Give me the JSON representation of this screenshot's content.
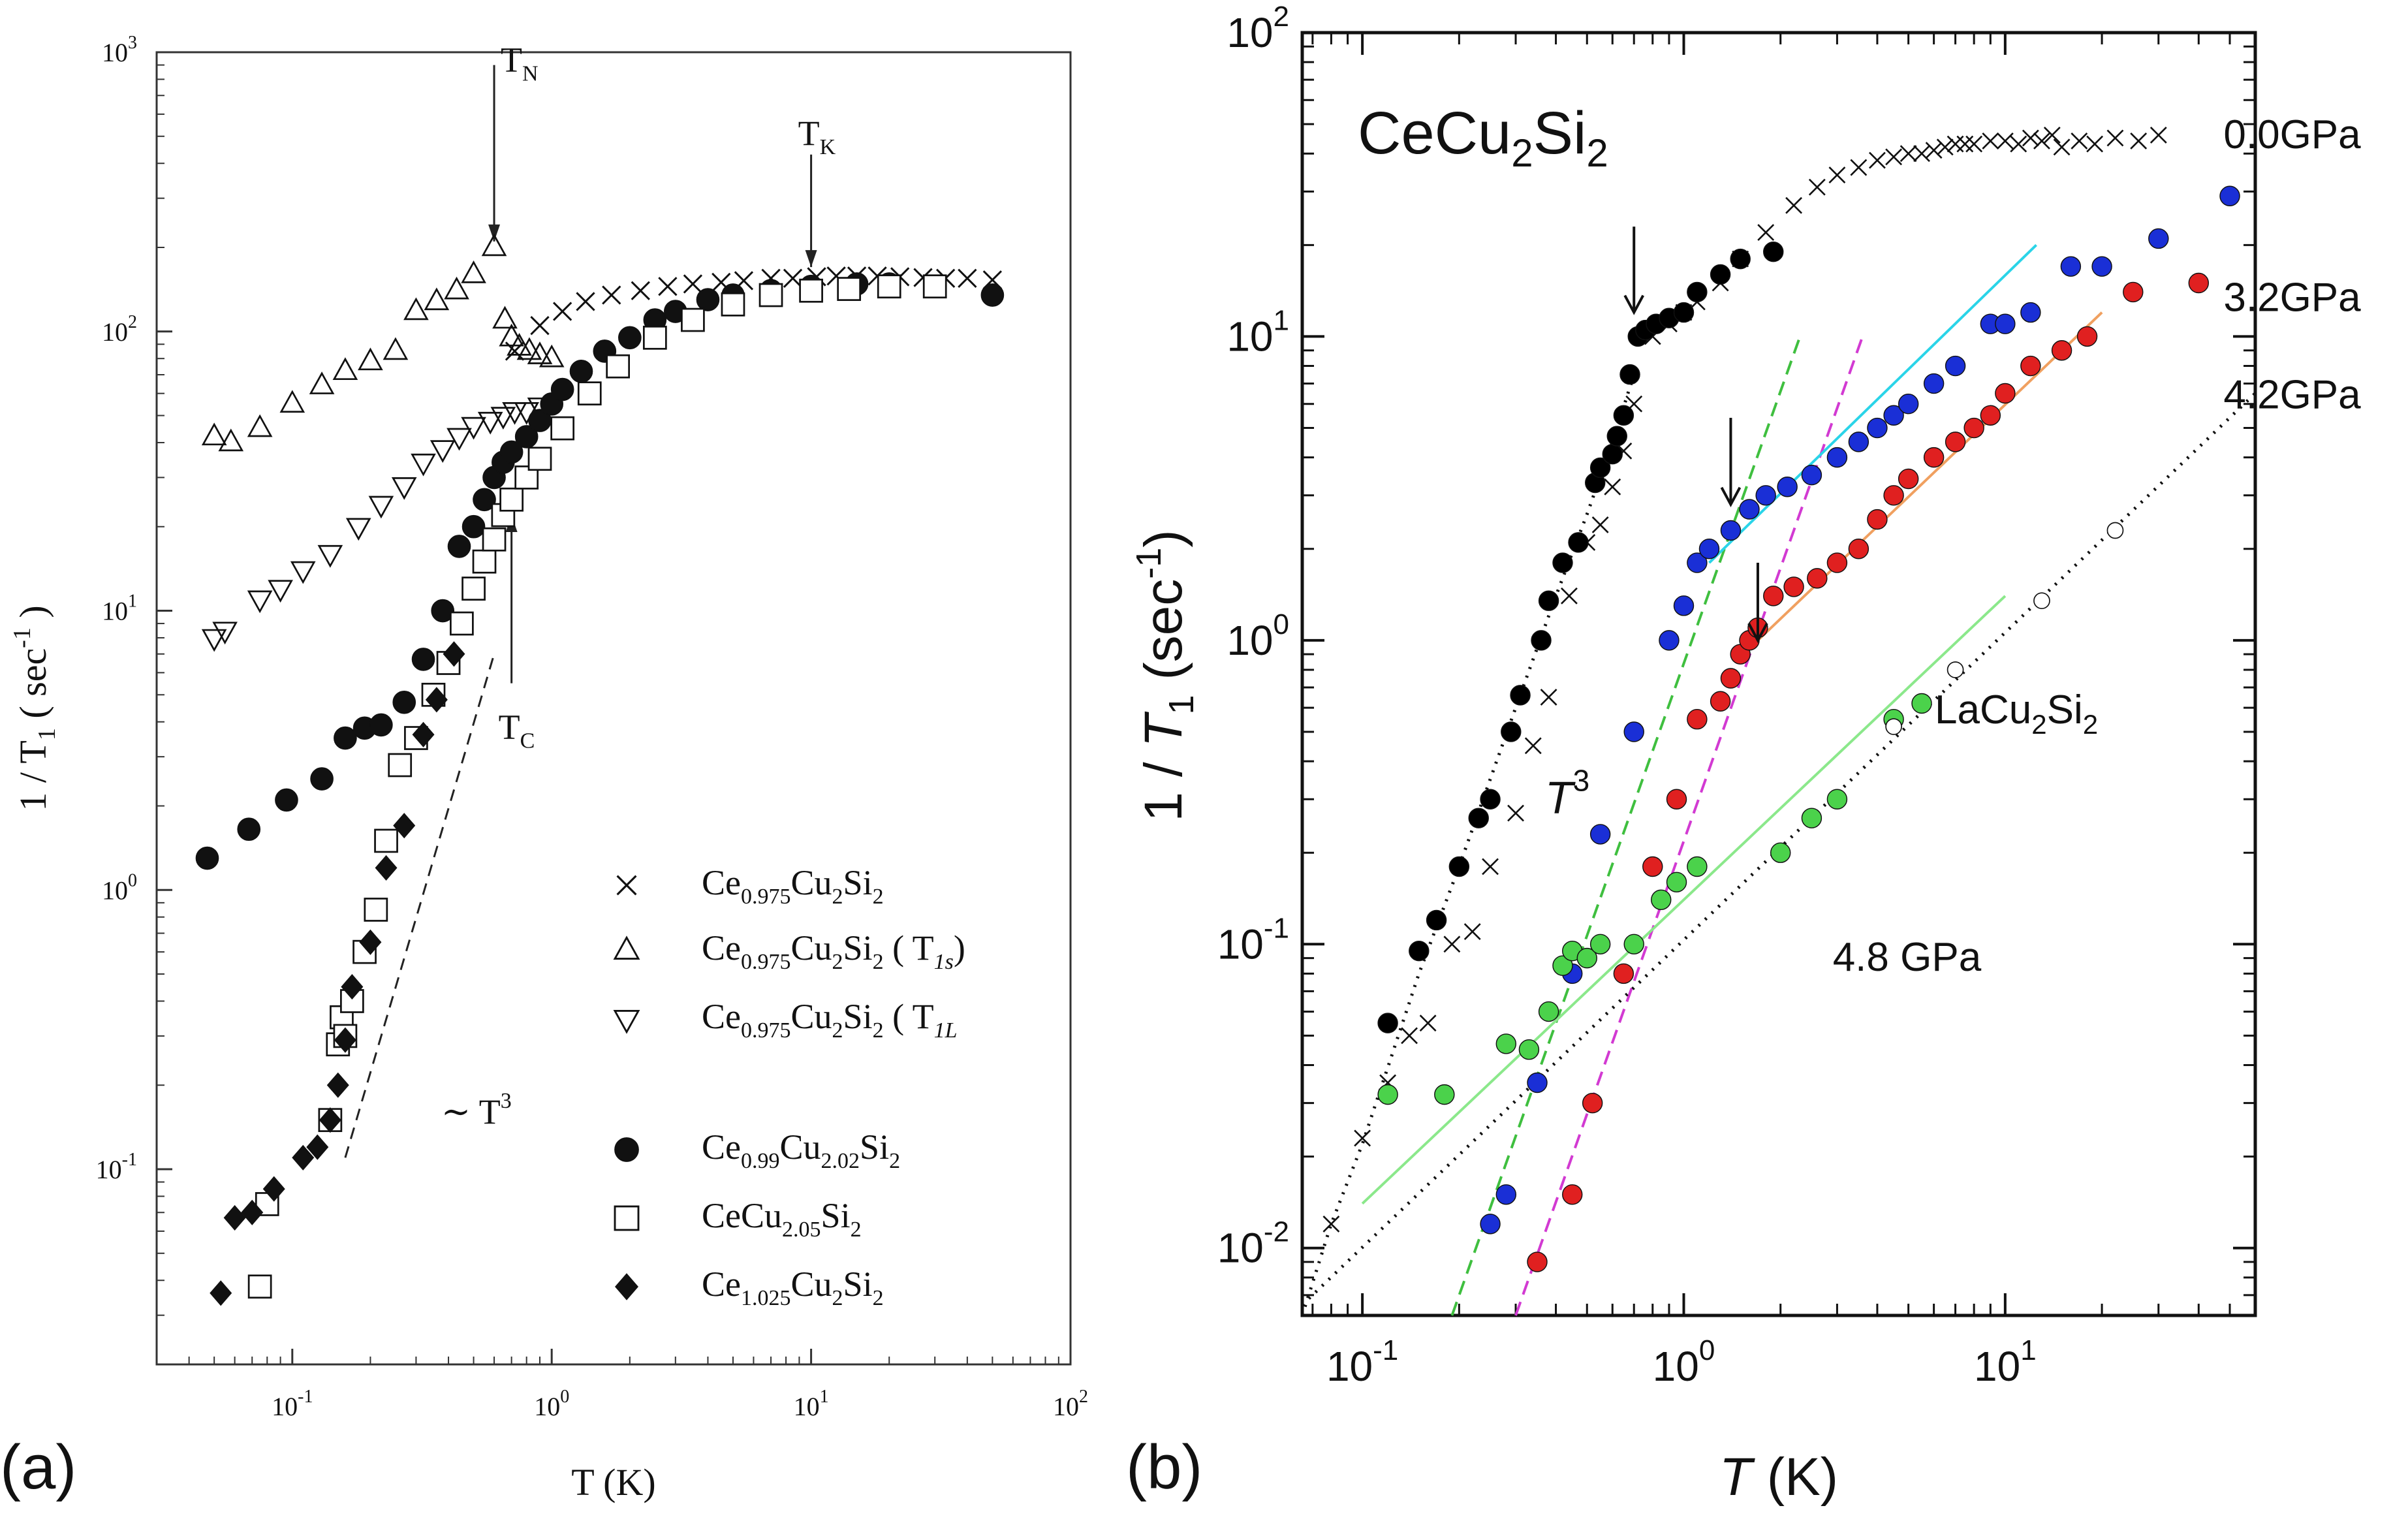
{
  "panel_labels": {
    "a": "(a)",
    "b": "(b)"
  },
  "chart_data": [
    {
      "type": "scatter",
      "id": "panel-a",
      "xscale": "log",
      "yscale": "log",
      "xlim": [
        0.03,
        100
      ],
      "ylim": [
        0.02,
        1000
      ],
      "xlabel": "T (K)",
      "ylabel": "1 / T",
      "ylabel_sub": "1",
      "ylabel_unit": " ( sec",
      "ylabel_unit_sup": "-1",
      "ylabel_close": " )",
      "xticks": [
        {
          "v": 0.1,
          "m": "10",
          "e": "-1"
        },
        {
          "v": 1,
          "m": "10",
          "e": "0"
        },
        {
          "v": 10,
          "m": "10",
          "e": "1"
        },
        {
          "v": 100,
          "m": "10",
          "e": "2"
        }
      ],
      "yticks": [
        {
          "v": 0.1,
          "m": "10",
          "e": "-1"
        },
        {
          "v": 1,
          "m": "10",
          "e": "0"
        },
        {
          "v": 10,
          "m": "10",
          "e": "1"
        },
        {
          "v": 100,
          "m": "10",
          "e": "2"
        },
        {
          "v": 1000,
          "m": "10",
          "e": "3"
        }
      ],
      "series": [
        {
          "name": "Ce0.975Cu2Si2",
          "marker": "cross",
          "x": [
            0.72,
            0.9,
            1.1,
            1.35,
            1.7,
            2.2,
            2.8,
            3.5,
            4.5,
            5.5,
            7,
            8.5,
            10.5,
            12.5,
            15,
            18,
            22,
            27,
            33,
            40,
            50
          ],
          "y": [
            85,
            105,
            118,
            128,
            135,
            140,
            145,
            148,
            150,
            152,
            155,
            155,
            157,
            158,
            158,
            158,
            157,
            156,
            155,
            155,
            153
          ]
        },
        {
          "name": "Ce0.975Cu2Si2 (T1s)",
          "marker": "tri-up",
          "x": [
            0.05,
            0.058,
            0.075,
            0.1,
            0.13,
            0.16,
            0.2,
            0.25,
            0.3,
            0.36,
            0.43,
            0.5,
            0.6,
            0.66,
            0.7,
            0.75,
            0.82,
            0.9,
            1.0
          ],
          "y": [
            42,
            40,
            45,
            55,
            64,
            72,
            78,
            85,
            118,
            128,
            140,
            160,
            200,
            110,
            95,
            88,
            85,
            82,
            80
          ]
        },
        {
          "name": "Ce0.975Cu2Si2 (T1L)",
          "marker": "tri-down",
          "x": [
            0.05,
            0.055,
            0.075,
            0.09,
            0.11,
            0.14,
            0.18,
            0.22,
            0.27,
            0.32,
            0.38,
            0.44,
            0.5,
            0.58,
            0.65,
            0.72,
            0.8,
            0.9
          ],
          "y": [
            8,
            8.5,
            11,
            12,
            14,
            16,
            20,
            24,
            28,
            34,
            38,
            42,
            46,
            48,
            50,
            52,
            52,
            54
          ]
        },
        {
          "name": "Ce0.99Cu2.02Si2",
          "marker": "circle",
          "x": [
            0.047,
            0.068,
            0.095,
            0.13,
            0.16,
            0.19,
            0.22,
            0.27,
            0.32,
            0.38,
            0.44,
            0.5,
            0.55,
            0.6,
            0.65,
            0.7,
            0.8,
            0.9,
            1.0,
            1.1,
            1.3,
            1.6,
            2.0,
            2.5,
            3.0,
            4,
            5,
            7,
            10,
            15,
            20,
            30,
            50
          ],
          "y": [
            1.3,
            1.65,
            2.1,
            2.5,
            3.5,
            3.8,
            3.9,
            4.7,
            6.7,
            10,
            17,
            20,
            25,
            30,
            34,
            37,
            42,
            48,
            55,
            62,
            72,
            85,
            95,
            110,
            118,
            130,
            135,
            140,
            145,
            148,
            148,
            145,
            135
          ]
        },
        {
          "name": "CeCu2.05Si2",
          "marker": "square",
          "x": [
            0.075,
            0.08,
            0.14,
            0.15,
            0.155,
            0.16,
            0.17,
            0.19,
            0.21,
            0.23,
            0.26,
            0.3,
            0.35,
            0.4,
            0.45,
            0.5,
            0.55,
            0.6,
            0.65,
            0.7,
            0.8,
            0.9,
            1.1,
            1.4,
            1.8,
            2.5,
            3.5,
            5,
            7,
            10,
            14,
            20,
            30
          ],
          "y": [
            0.038,
            0.075,
            0.15,
            0.28,
            0.35,
            0.3,
            0.4,
            0.6,
            0.85,
            1.5,
            2.8,
            3.5,
            5,
            6.5,
            9,
            12,
            15,
            18,
            22,
            25,
            30,
            35,
            45,
            60,
            75,
            95,
            110,
            125,
            135,
            140,
            142,
            145,
            145
          ]
        },
        {
          "name": "Ce1.025Cu2Si2",
          "marker": "diamond",
          "x": [
            0.053,
            0.06,
            0.07,
            0.085,
            0.11,
            0.125,
            0.14,
            0.15,
            0.16,
            0.17,
            0.2,
            0.23,
            0.27,
            0.32,
            0.36,
            0.42
          ],
          "y": [
            0.036,
            0.067,
            0.07,
            0.085,
            0.11,
            0.12,
            0.15,
            0.2,
            0.29,
            0.45,
            0.65,
            1.2,
            1.7,
            3.6,
            4.8,
            7
          ]
        }
      ],
      "legend": [
        {
          "main": "Ce",
          "s1": "0.975",
          "m2": "Cu",
          "s2": "2",
          "m3": "Si",
          "s3": "2",
          "extra": "",
          "marker": "cross"
        },
        {
          "main": "Ce",
          "s1": "0.975",
          "m2": "Cu",
          "s2": "2",
          "m3": "Si",
          "s3": "2",
          "extra": " ( T",
          "extra_sub": "1s",
          "extra_close": ")",
          "marker": "tri-up"
        },
        {
          "main": "Ce",
          "s1": "0.975",
          "m2": "Cu",
          "s2": "2",
          "m3": "Si",
          "s3": "2",
          "extra": " ( T",
          "extra_sub": "1L",
          "extra_close": "",
          "marker": "tri-down"
        },
        {
          "main": "Ce",
          "s1": "0.99",
          "m2": "Cu",
          "s2": "2.02",
          "m3": "Si",
          "s3": "2",
          "extra": "",
          "marker": "circle"
        },
        {
          "main": "Ce",
          "s1": "",
          "m2": "Cu",
          "s2": "2.05",
          "m3": "Si",
          "s3": "2",
          "extra": "",
          "marker": "square"
        },
        {
          "main": "Ce",
          "s1": "1.025",
          "m2": "Cu",
          "s2": "2",
          "m3": "Si",
          "s3": "2",
          "extra": "",
          "marker": "diamond"
        }
      ],
      "annotations": {
        "TN": {
          "base": "T",
          "sub": "N",
          "x": 0.6,
          "arrow_from": 900,
          "arrow_to": 210
        },
        "TK": {
          "base": "T",
          "sub": "K",
          "x": 10,
          "arrow_from": 430,
          "arrow_to": 170
        },
        "TC": {
          "base": "T",
          "sub": "C",
          "x": 0.7,
          "arrow_from": 5.5,
          "arrow_to": 22
        },
        "power": {
          "base": "T",
          "sup": "3",
          "prefix": "∼",
          "x": 0.25,
          "y": 0.1
        },
        "t3_dashed_line": {
          "x": [
            0.16,
            0.6
          ],
          "y": [
            0.11,
            7
          ]
        }
      }
    },
    {
      "type": "scatter",
      "id": "panel-b",
      "xscale": "log",
      "yscale": "log",
      "xlim": [
        0.065,
        60
      ],
      "ylim": [
        0.006,
        100
      ],
      "title_main": "CeCu",
      "title_s1": "2",
      "title_m2": "Si",
      "title_s2": "2",
      "xlabel_italic": "T",
      "xlabel_rest": " (K)",
      "ylabel_pre": "1 / ",
      "ylabel_italic": "T",
      "ylabel_sub": "1",
      "ylabel_unit": " (sec",
      "ylabel_sup": "-1",
      "ylabel_close": ")",
      "xticks": [
        {
          "v": 0.1,
          "m": "10",
          "e": "-1"
        },
        {
          "v": 1,
          "m": "10",
          "e": "0"
        },
        {
          "v": 10,
          "m": "10",
          "e": "1"
        }
      ],
      "yticks": [
        {
          "v": 0.01,
          "m": "10",
          "e": "-2"
        },
        {
          "v": 0.1,
          "m": "10",
          "e": "-1"
        },
        {
          "v": 1,
          "m": "10",
          "e": "0"
        },
        {
          "v": 10,
          "m": "10",
          "e": "1"
        },
        {
          "v": 100,
          "m": "10",
          "e": "2"
        }
      ],
      "series": [
        {
          "name": "0.0GPa",
          "label": "0.0GPa",
          "marker": "cross",
          "color": "#111111",
          "x": [
            0.08,
            0.1,
            0.12,
            0.14,
            0.16,
            0.19,
            0.22,
            0.25,
            0.3,
            0.34,
            0.38,
            0.44,
            0.5,
            0.55,
            0.6,
            0.65,
            0.7,
            0.8,
            0.9,
            1.0,
            1.1,
            1.3,
            1.5,
            1.8,
            2.2,
            2.6,
            3,
            3.5,
            4,
            4.5,
            5,
            5.5,
            6,
            6.5,
            7,
            7.5,
            8,
            9,
            10,
            11,
            12,
            13,
            14,
            15,
            17,
            19,
            22,
            26,
            30
          ],
          "y": [
            0.012,
            0.023,
            0.035,
            0.05,
            0.055,
            0.1,
            0.11,
            0.18,
            0.27,
            0.45,
            0.65,
            1.4,
            2.1,
            2.4,
            3.2,
            4.2,
            6,
            10,
            11,
            12,
            13,
            15,
            18,
            22,
            27,
            31,
            34,
            36,
            38,
            39,
            40,
            40,
            41,
            42,
            43,
            43,
            43,
            44,
            44,
            43,
            45,
            44,
            46,
            42,
            44,
            43,
            45,
            44,
            46
          ]
        },
        {
          "name": "0.0GPa circles",
          "marker": "circle",
          "color": "#000000",
          "x": [
            0.12,
            0.15,
            0.17,
            0.2,
            0.23,
            0.25,
            0.29,
            0.31,
            0.36,
            0.38,
            0.42,
            0.47,
            0.53,
            0.55,
            0.6,
            0.62,
            0.65,
            0.68,
            0.72,
            0.76,
            0.82,
            0.9,
            1.0,
            1.1,
            1.3,
            1.5,
            1.9
          ],
          "y": [
            0.055,
            0.095,
            0.12,
            0.18,
            0.26,
            0.3,
            0.5,
            0.66,
            1.0,
            1.35,
            1.8,
            2.1,
            3.3,
            3.7,
            4.1,
            4.7,
            5.5,
            7.5,
            10,
            10.5,
            11,
            11.5,
            12,
            14,
            16,
            18,
            19
          ]
        },
        {
          "name": "3.2GPa",
          "label": "3.2GPa",
          "marker": "circle",
          "color": "#1a2fd6",
          "x": [
            0.25,
            0.28,
            0.35,
            0.45,
            0.55,
            0.7,
            0.9,
            1.0,
            1.1,
            1.2,
            1.4,
            1.6,
            1.8,
            2.1,
            2.5,
            3,
            3.5,
            4,
            4.5,
            5,
            6,
            7,
            9,
            10,
            12,
            16,
            20,
            30,
            50
          ],
          "y": [
            0.012,
            0.015,
            0.035,
            0.08,
            0.23,
            0.5,
            1.0,
            1.3,
            1.8,
            2,
            2.3,
            2.7,
            3,
            3.2,
            3.5,
            4,
            4.5,
            5,
            5.5,
            6,
            7,
            8,
            11,
            11,
            12,
            17,
            17,
            21,
            29
          ]
        },
        {
          "name": "4.2GPa",
          "label": "4.2GPa",
          "marker": "circle",
          "color": "#e02020",
          "x": [
            0.35,
            0.45,
            0.52,
            0.65,
            0.8,
            0.95,
            1.1,
            1.3,
            1.4,
            1.5,
            1.6,
            1.7,
            1.9,
            2.2,
            2.6,
            3,
            3.5,
            4,
            4.5,
            5,
            6,
            7,
            8,
            9,
            10,
            12,
            15,
            18,
            25,
            40
          ],
          "y": [
            0.009,
            0.015,
            0.03,
            0.08,
            0.18,
            0.3,
            0.55,
            0.63,
            0.75,
            0.9,
            1.0,
            1.1,
            1.4,
            1.5,
            1.6,
            1.8,
            2,
            2.5,
            3,
            3.4,
            4,
            4.5,
            5,
            5.5,
            6.5,
            8,
            9,
            10,
            14,
            15
          ]
        },
        {
          "name": "4.8 GPa",
          "label": "4.8 GPa",
          "marker": "circle",
          "color": "#4bd24b",
          "x": [
            0.12,
            0.18,
            0.28,
            0.33,
            0.38,
            0.42,
            0.45,
            0.5,
            0.55,
            0.7,
            0.85,
            0.95,
            1.1,
            2.0,
            2.5,
            3.0,
            4.5,
            5.5
          ],
          "y": [
            0.032,
            0.032,
            0.047,
            0.045,
            0.06,
            0.085,
            0.095,
            0.09,
            0.1,
            0.1,
            0.14,
            0.16,
            0.18,
            0.2,
            0.26,
            0.3,
            0.55,
            0.62
          ]
        },
        {
          "name": "LaCu2Si2",
          "marker": "open-circle",
          "color": "#111111",
          "x": [
            4.5,
            7,
            13,
            22
          ],
          "y": [
            0.52,
            0.8,
            1.35,
            2.3
          ]
        }
      ],
      "fit_lines": [
        {
          "name": "T3 fit 3.2GPa",
          "color": "#3fbf3f",
          "dash": true,
          "x": [
            0.19,
            2.3
          ],
          "y": [
            0.006,
            10
          ]
        },
        {
          "name": "T3 fit 4.2GPa",
          "color": "#d23ad2",
          "dash": true,
          "x": [
            0.3,
            3.6
          ],
          "y": [
            0.006,
            10
          ]
        },
        {
          "name": "linear fit 3.2GPa",
          "color": "#2ad4e8",
          "dash": false,
          "x": [
            1.2,
            12.5
          ],
          "y": [
            1.8,
            20
          ]
        },
        {
          "name": "linear fit 4.2GPa",
          "color": "#f0a060",
          "dash": false,
          "x": [
            1.7,
            20
          ],
          "y": [
            1.0,
            12
          ]
        },
        {
          "name": "linear fit 4.8GPa",
          "color": "#8be88b",
          "dash": false,
          "x": [
            0.1,
            10
          ],
          "y": [
            0.014,
            1.4
          ]
        },
        {
          "name": "LaCu2Si2 dotted",
          "color": "#111111",
          "dash": "dot",
          "x": [
            0.065,
            60
          ],
          "y": [
            0.0065,
            6.5
          ]
        },
        {
          "name": "0.0GPa dotted",
          "color": "#111111",
          "dash": "dot",
          "x": [
            0.065,
            0.08,
            0.1,
            0.15,
            0.2,
            0.3,
            0.4,
            0.5,
            0.6,
            0.7
          ],
          "y": [
            0.006,
            0.012,
            0.022,
            0.08,
            0.18,
            0.6,
            1.4,
            2.6,
            4.5,
            7.5
          ]
        }
      ],
      "labels": {
        "p00": {
          "text": "0.0GPa",
          "x": 55,
          "y": 46
        },
        "p32": {
          "text": "3.2GPa",
          "x": 55,
          "y": 18
        },
        "p42": {
          "text": "4.2GPa",
          "x": 55,
          "y": 10
        },
        "p48": {
          "text": "4.8 GPa",
          "x": 2.0,
          "y": 0.11
        },
        "la_main": "LaCu",
        "la_s1": "2",
        "la_m2": "Si",
        "la_s2": "2",
        "t3_base": "T",
        "t3_sup": "3"
      },
      "arrows": [
        {
          "name": "Tc 0.0GPa",
          "x": 0.7,
          "y_from": 23,
          "y_to": 12
        },
        {
          "name": "Tc 3.2GPa",
          "x": 1.4,
          "y_from": 5.4,
          "y_to": 2.8
        },
        {
          "name": "Tc 4.2GPa",
          "x": 1.7,
          "y_from": 1.8,
          "y_to": 1.0
        }
      ]
    }
  ]
}
